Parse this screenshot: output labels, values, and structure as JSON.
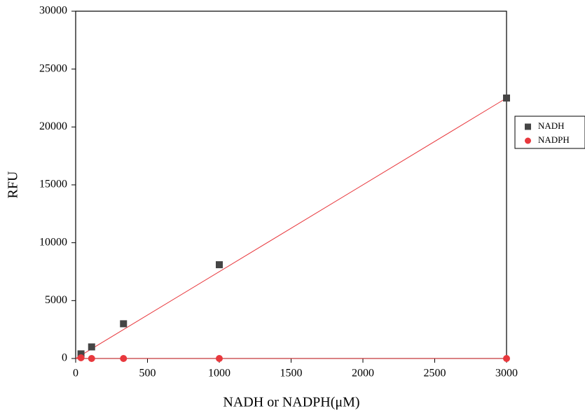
{
  "chart_data": {
    "type": "scatter",
    "x_label": "NADH or NADPH(μM)",
    "y_label": "RFU",
    "xlim": [
      0,
      3000
    ],
    "xticks": [
      0,
      500,
      1000,
      1500,
      2000,
      2500,
      3000
    ],
    "ylim": [
      0,
      30000
    ],
    "yticks": [
      0,
      5000,
      10000,
      15000,
      20000,
      25000,
      30000
    ],
    "series": [
      {
        "name": "NADH",
        "color": "#454545",
        "marker": "square",
        "x": [
          37,
          111,
          333,
          1000,
          3000
        ],
        "values": [
          400,
          1000,
          3000,
          8100,
          22500
        ]
      },
      {
        "name": "NADPH",
        "color": "#e8383d",
        "marker": "circle",
        "x": [
          37,
          111,
          333,
          1000,
          3000
        ],
        "values": [
          60,
          0,
          0,
          0,
          0
        ]
      }
    ],
    "fit_lines": [
      {
        "color": "#e8383d",
        "x": [
          0,
          3000
        ],
        "values": [
          0,
          22500
        ]
      },
      {
        "color": "#e8383d",
        "x": [
          0,
          3000
        ],
        "values": [
          0,
          0
        ]
      }
    ]
  }
}
